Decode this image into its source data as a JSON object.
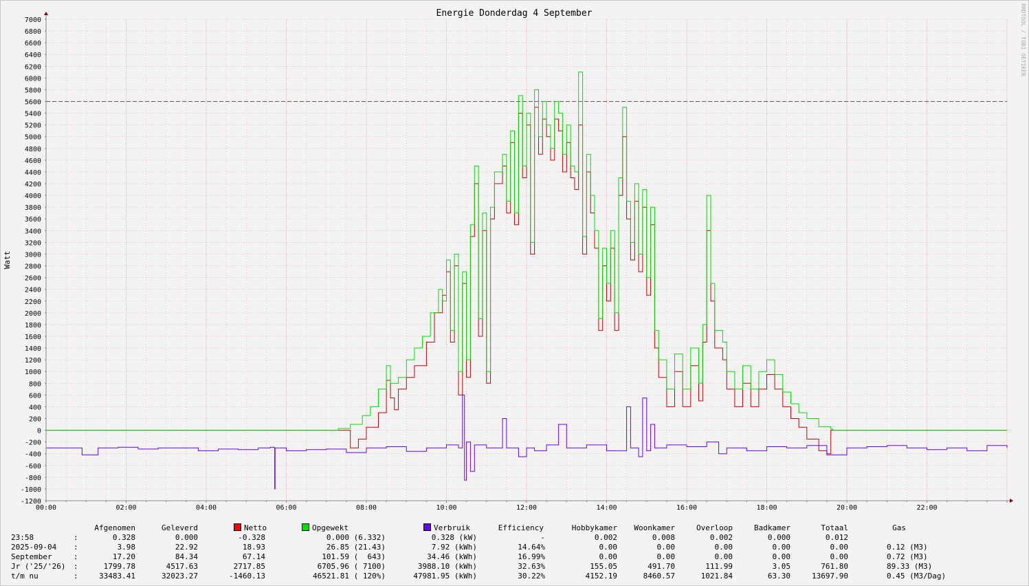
{
  "chart_data": {
    "type": "line",
    "title": "Energie Donderdag 4 September",
    "ylabel": "Watt",
    "watermark": "RRDTOOL / TOBI OETIKER",
    "ylim": [
      -1200,
      7000
    ],
    "ytick_step": 200,
    "xlim_hours": [
      0,
      24
    ],
    "xtick_labels": [
      "00:00",
      "02:00",
      "04:00",
      "06:00",
      "08:00",
      "10:00",
      "12:00",
      "14:00",
      "16:00",
      "18:00",
      "20:00",
      "22:00"
    ],
    "hrule": 5600,
    "colors": {
      "netto": "#ff0000",
      "opgewekt": "#00dd00",
      "verbruik": "#6600ff",
      "hrule": "#7a5050",
      "grid": "#e8a8a8",
      "axis": "#888888",
      "arrow": "#8b0000"
    },
    "series": [
      {
        "name": "Netto",
        "color": "#cc0000",
        "points": [
          [
            0,
            0
          ],
          [
            7.3,
            0
          ],
          [
            7.6,
            -300
          ],
          [
            7.8,
            -150
          ],
          [
            8.0,
            50
          ],
          [
            8.3,
            300
          ],
          [
            8.5,
            850
          ],
          [
            8.6,
            550
          ],
          [
            8.7,
            350
          ],
          [
            8.8,
            700
          ],
          [
            9.0,
            900
          ],
          [
            9.2,
            1100
          ],
          [
            9.5,
            1500
          ],
          [
            9.7,
            2000
          ],
          [
            9.9,
            2300
          ],
          [
            10.0,
            2700
          ],
          [
            10.1,
            1500
          ],
          [
            10.2,
            2800
          ],
          [
            10.3,
            600
          ],
          [
            10.4,
            2500
          ],
          [
            10.5,
            900
          ],
          [
            10.6,
            3300
          ],
          [
            10.7,
            4200
          ],
          [
            10.8,
            1600
          ],
          [
            10.9,
            3400
          ],
          [
            11.0,
            800
          ],
          [
            11.1,
            3600
          ],
          [
            11.2,
            4200
          ],
          [
            11.4,
            4500
          ],
          [
            11.5,
            3700
          ],
          [
            11.6,
            4900
          ],
          [
            11.7,
            3500
          ],
          [
            11.8,
            5400
          ],
          [
            11.9,
            4300
          ],
          [
            12.0,
            5200
          ],
          [
            12.1,
            3000
          ],
          [
            12.2,
            5500
          ],
          [
            12.3,
            4700
          ],
          [
            12.4,
            5300
          ],
          [
            12.5,
            5000
          ],
          [
            12.6,
            4600
          ],
          [
            12.7,
            5300
          ],
          [
            12.8,
            5100
          ],
          [
            12.9,
            4400
          ],
          [
            13.0,
            4900
          ],
          [
            13.1,
            4300
          ],
          [
            13.2,
            4100
          ],
          [
            13.3,
            5200
          ],
          [
            13.4,
            3000
          ],
          [
            13.5,
            4400
          ],
          [
            13.6,
            3700
          ],
          [
            13.7,
            3100
          ],
          [
            13.8,
            1700
          ],
          [
            13.9,
            2800
          ],
          [
            14.0,
            2200
          ],
          [
            14.1,
            3100
          ],
          [
            14.2,
            1700
          ],
          [
            14.3,
            4000
          ],
          [
            14.4,
            5000
          ],
          [
            14.5,
            3600
          ],
          [
            14.6,
            2900
          ],
          [
            14.7,
            3900
          ],
          [
            14.8,
            2700
          ],
          [
            14.9,
            3800
          ],
          [
            15.0,
            2300
          ],
          [
            15.1,
            3500
          ],
          [
            15.2,
            1400
          ],
          [
            15.3,
            900
          ],
          [
            15.5,
            400
          ],
          [
            15.7,
            1000
          ],
          [
            15.9,
            400
          ],
          [
            16.1,
            1100
          ],
          [
            16.3,
            500
          ],
          [
            16.4,
            1500
          ],
          [
            16.5,
            3400
          ],
          [
            16.6,
            2200
          ],
          [
            16.7,
            1400
          ],
          [
            16.9,
            1200
          ],
          [
            17.0,
            700
          ],
          [
            17.2,
            400
          ],
          [
            17.4,
            800
          ],
          [
            17.6,
            400
          ],
          [
            17.8,
            700
          ],
          [
            18.0,
            950
          ],
          [
            18.2,
            700
          ],
          [
            18.4,
            400
          ],
          [
            18.6,
            200
          ],
          [
            18.8,
            50
          ],
          [
            19.0,
            -150
          ],
          [
            19.3,
            -350
          ],
          [
            19.5,
            -400
          ],
          [
            19.6,
            0
          ],
          [
            24,
            0
          ]
        ]
      },
      {
        "name": "Opgewekt",
        "color": "#00dd00",
        "points": [
          [
            0,
            0
          ],
          [
            7.2,
            0
          ],
          [
            7.3,
            30
          ],
          [
            7.6,
            100
          ],
          [
            7.9,
            250
          ],
          [
            8.1,
            400
          ],
          [
            8.3,
            700
          ],
          [
            8.5,
            1100
          ],
          [
            8.6,
            800
          ],
          [
            8.8,
            900
          ],
          [
            9.0,
            1200
          ],
          [
            9.2,
            1400
          ],
          [
            9.4,
            1600
          ],
          [
            9.6,
            2000
          ],
          [
            9.8,
            2400
          ],
          [
            9.9,
            2200
          ],
          [
            10.0,
            2900
          ],
          [
            10.1,
            1700
          ],
          [
            10.2,
            3000
          ],
          [
            10.3,
            1000
          ],
          [
            10.4,
            2700
          ],
          [
            10.5,
            1200
          ],
          [
            10.6,
            3500
          ],
          [
            10.7,
            4500
          ],
          [
            10.8,
            1900
          ],
          [
            10.9,
            3700
          ],
          [
            11.0,
            1000
          ],
          [
            11.1,
            3800
          ],
          [
            11.2,
            4400
          ],
          [
            11.4,
            4700
          ],
          [
            11.5,
            3900
          ],
          [
            11.6,
            5100
          ],
          [
            11.7,
            3700
          ],
          [
            11.8,
            5700
          ],
          [
            11.9,
            4500
          ],
          [
            12.0,
            5400
          ],
          [
            12.1,
            3200
          ],
          [
            12.2,
            5800
          ],
          [
            12.3,
            5000
          ],
          [
            12.4,
            5600
          ],
          [
            12.5,
            5200
          ],
          [
            12.6,
            4800
          ],
          [
            12.7,
            5600
          ],
          [
            12.8,
            5400
          ],
          [
            12.9,
            4700
          ],
          [
            13.0,
            5200
          ],
          [
            13.1,
            4500
          ],
          [
            13.2,
            4400
          ],
          [
            13.3,
            6100
          ],
          [
            13.4,
            3300
          ],
          [
            13.5,
            4700
          ],
          [
            13.6,
            4000
          ],
          [
            13.7,
            3400
          ],
          [
            13.8,
            1900
          ],
          [
            13.9,
            3100
          ],
          [
            14.0,
            2500
          ],
          [
            14.1,
            3400
          ],
          [
            14.2,
            2000
          ],
          [
            14.3,
            4300
          ],
          [
            14.4,
            5500
          ],
          [
            14.5,
            3900
          ],
          [
            14.6,
            3200
          ],
          [
            14.7,
            4200
          ],
          [
            14.8,
            3000
          ],
          [
            14.9,
            4100
          ],
          [
            15.0,
            2600
          ],
          [
            15.1,
            3800
          ],
          [
            15.2,
            1700
          ],
          [
            15.3,
            1200
          ],
          [
            15.5,
            700
          ],
          [
            15.7,
            1300
          ],
          [
            15.9,
            700
          ],
          [
            16.1,
            1400
          ],
          [
            16.3,
            800
          ],
          [
            16.4,
            1800
          ],
          [
            16.5,
            4000
          ],
          [
            16.6,
            2500
          ],
          [
            16.7,
            1700
          ],
          [
            16.9,
            1500
          ],
          [
            17.0,
            1000
          ],
          [
            17.2,
            700
          ],
          [
            17.4,
            1100
          ],
          [
            17.6,
            700
          ],
          [
            17.8,
            1000
          ],
          [
            18.0,
            1200
          ],
          [
            18.2,
            950
          ],
          [
            18.4,
            650
          ],
          [
            18.6,
            450
          ],
          [
            18.8,
            300
          ],
          [
            19.0,
            200
          ],
          [
            19.3,
            60
          ],
          [
            19.6,
            20
          ],
          [
            19.65,
            0
          ],
          [
            24,
            0
          ]
        ]
      },
      {
        "name": "Verbruik",
        "color": "#6600ff",
        "points": [
          [
            0,
            -300
          ],
          [
            0.5,
            -300
          ],
          [
            0.9,
            -420
          ],
          [
            1.3,
            -300
          ],
          [
            1.8,
            -290
          ],
          [
            2.3,
            -320
          ],
          [
            2.8,
            -300
          ],
          [
            3.3,
            -300
          ],
          [
            3.8,
            -350
          ],
          [
            4.3,
            -320
          ],
          [
            4.8,
            -330
          ],
          [
            5.3,
            -300
          ],
          [
            5.6,
            -290
          ],
          [
            5.7,
            -300
          ],
          [
            5.71,
            -1000
          ],
          [
            5.72,
            -300
          ],
          [
            6.0,
            -350
          ],
          [
            6.5,
            -330
          ],
          [
            7.0,
            -320
          ],
          [
            7.5,
            -380
          ],
          [
            8.0,
            -300
          ],
          [
            8.5,
            -280
          ],
          [
            9.0,
            -360
          ],
          [
            9.5,
            -300
          ],
          [
            10.0,
            -250
          ],
          [
            10.3,
            -300
          ],
          [
            10.4,
            600
          ],
          [
            10.45,
            -850
          ],
          [
            10.5,
            -200
          ],
          [
            10.6,
            -700
          ],
          [
            10.7,
            -250
          ],
          [
            11.0,
            -300
          ],
          [
            11.4,
            200
          ],
          [
            11.5,
            -300
          ],
          [
            11.8,
            -450
          ],
          [
            12.0,
            -300
          ],
          [
            12.2,
            -350
          ],
          [
            12.5,
            -250
          ],
          [
            12.8,
            100
          ],
          [
            13.0,
            -300
          ],
          [
            13.5,
            -250
          ],
          [
            14.0,
            -350
          ],
          [
            14.5,
            400
          ],
          [
            14.6,
            -300
          ],
          [
            14.8,
            -450
          ],
          [
            14.9,
            550
          ],
          [
            15.0,
            -350
          ],
          [
            15.1,
            100
          ],
          [
            15.2,
            -300
          ],
          [
            15.5,
            -250
          ],
          [
            16.0,
            -280
          ],
          [
            16.5,
            -200
          ],
          [
            16.8,
            -400
          ],
          [
            17.0,
            -300
          ],
          [
            17.5,
            -350
          ],
          [
            18.0,
            -280
          ],
          [
            18.5,
            -300
          ],
          [
            19.0,
            -260
          ],
          [
            19.5,
            -420
          ],
          [
            20.0,
            -300
          ],
          [
            20.5,
            -280
          ],
          [
            21.0,
            -260
          ],
          [
            21.5,
            -300
          ],
          [
            22.0,
            -330
          ],
          [
            22.5,
            -300
          ],
          [
            23.0,
            -350
          ],
          [
            23.5,
            -260
          ],
          [
            24,
            -300
          ]
        ]
      }
    ]
  },
  "legend": {
    "headers": [
      "Afgenomen",
      "Geleverd",
      "Netto",
      "Opgewekt",
      "Verbruik",
      "Efficiency",
      "Hobbykamer",
      "Woonkamer",
      "Overloop",
      "Badkamer",
      "Totaal",
      "Gas"
    ],
    "rows": [
      {
        "label": "23:58",
        "sep": ":",
        "cells": [
          "0.328",
          "0.000",
          "-0.328",
          "0.000 (6.332)",
          "0.328 (kW)",
          "-",
          "0.002",
          "0.008",
          "0.002",
          "0.000",
          "0.012",
          ""
        ]
      },
      {
        "label": "2025-09-04",
        "sep": ":",
        "cells": [
          "3.98",
          "22.92",
          "18.93",
          "26.85 (21.43)",
          "7.92 (kWh)",
          "14.64%",
          "0.00",
          "0.00",
          "0.00",
          "0.00",
          "0.00",
          "0.12 (M3)"
        ]
      },
      {
        "label": "September",
        "sep": ":",
        "cells": [
          "17.20",
          "84.34",
          "67.14",
          "101.59 (  643)",
          "34.46 (kWh)",
          "16.99%",
          "0.00",
          "0.00",
          "0.00",
          "0.00",
          "0.00",
          "0.72 (M3)"
        ]
      },
      {
        "label": "Jr ('25/'26)",
        "sep": ":",
        "cells": [
          "1799.78",
          "4517.63",
          "2717.85",
          "6705.96 ( 7100)",
          "3988.10 (kWh)",
          "32.63%",
          "155.05",
          "491.70",
          "111.99",
          "3.05",
          "761.80",
          "89.33 (M3)"
        ]
      },
      {
        "label": "t/m nu",
        "sep": ":",
        "cells": [
          "33483.41",
          "32023.27",
          "-1460.13",
          "46521.81 ( 120%)",
          "47981.95 (kWh)",
          "30.22%",
          "4152.19",
          "8460.57",
          "1021.84",
          "63.30",
          "13697.90",
          "0.45 (M3/Dag)"
        ]
      }
    ]
  }
}
